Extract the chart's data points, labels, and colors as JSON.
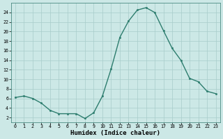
{
  "x": [
    0,
    1,
    2,
    3,
    4,
    5,
    6,
    7,
    8,
    9,
    10,
    11,
    12,
    13,
    14,
    15,
    16,
    17,
    18,
    19,
    20,
    21,
    22,
    23
  ],
  "y": [
    6.2,
    6.5,
    6.0,
    5.0,
    3.5,
    2.8,
    2.8,
    2.8,
    1.8,
    3.0,
    6.5,
    12.2,
    18.8,
    22.2,
    24.5,
    25.0,
    24.0,
    20.2,
    16.5,
    14.0,
    10.2,
    9.5,
    7.5,
    7.0
  ],
  "line_color": "#2d7d6e",
  "marker": "o",
  "marker_size": 1.8,
  "line_width": 1.0,
  "xlabel": "Humidex (Indice chaleur)",
  "xlim": [
    -0.5,
    23.5
  ],
  "ylim": [
    1,
    26
  ],
  "yticks": [
    2,
    4,
    6,
    8,
    10,
    12,
    14,
    16,
    18,
    20,
    22,
    24
  ],
  "xticks": [
    0,
    1,
    2,
    3,
    4,
    5,
    6,
    7,
    8,
    9,
    10,
    11,
    12,
    13,
    14,
    15,
    16,
    17,
    18,
    19,
    20,
    21,
    22,
    23
  ],
  "bg_color": "#cce8e6",
  "grid_color": "#a8ccca",
  "tick_fontsize": 4.8,
  "xlabel_fontsize": 6.5,
  "xlabel_fontweight": "bold",
  "spine_color": "#4a8a82"
}
